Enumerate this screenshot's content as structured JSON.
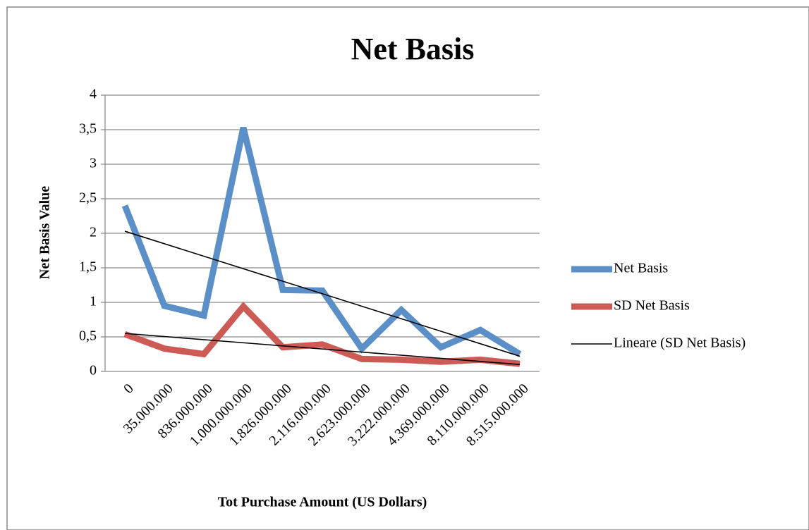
{
  "chart_data": {
    "type": "line",
    "title": "Net Basis",
    "xlabel": "Tot Purchase Amount (US Dollars)",
    "ylabel": "Net Basis Value",
    "categories": [
      "0",
      "35.000.000",
      "836.000.000",
      "1.000.000.000",
      "1.826.000.000",
      "2.116.000.000",
      "2.623.000.000",
      "3.222.000.000",
      "4.369.000.000",
      "8.110.000.000",
      "8.515.000.000"
    ],
    "series": [
      {
        "name": "Net Basis",
        "color": "#5b8fc7",
        "values": [
          2.4,
          0.95,
          0.81,
          3.53,
          1.18,
          1.17,
          0.33,
          0.89,
          0.35,
          0.6,
          0.25
        ]
      },
      {
        "name": "SD Net Basis",
        "color": "#cc5a55",
        "values": [
          0.54,
          0.33,
          0.25,
          0.94,
          0.35,
          0.39,
          0.18,
          0.17,
          0.14,
          0.17,
          0.11
        ]
      }
    ],
    "trendlines": [
      {
        "name": "Lineare (SD Net Basis)",
        "color": "#000000",
        "values": [
          0.55,
          0.1
        ]
      },
      {
        "color": "#000000",
        "values": [
          2.03,
          0.22
        ]
      }
    ],
    "ylim": [
      0,
      4
    ],
    "yticks": [
      0,
      {
        "value": 0.5,
        "label": "0,5"
      },
      1,
      {
        "value": 1.5,
        "label": "1,5"
      },
      2,
      {
        "value": 2.5,
        "label": "2,5"
      },
      3,
      {
        "value": 3.5,
        "label": "3,5"
      },
      4
    ],
    "grid": true
  }
}
